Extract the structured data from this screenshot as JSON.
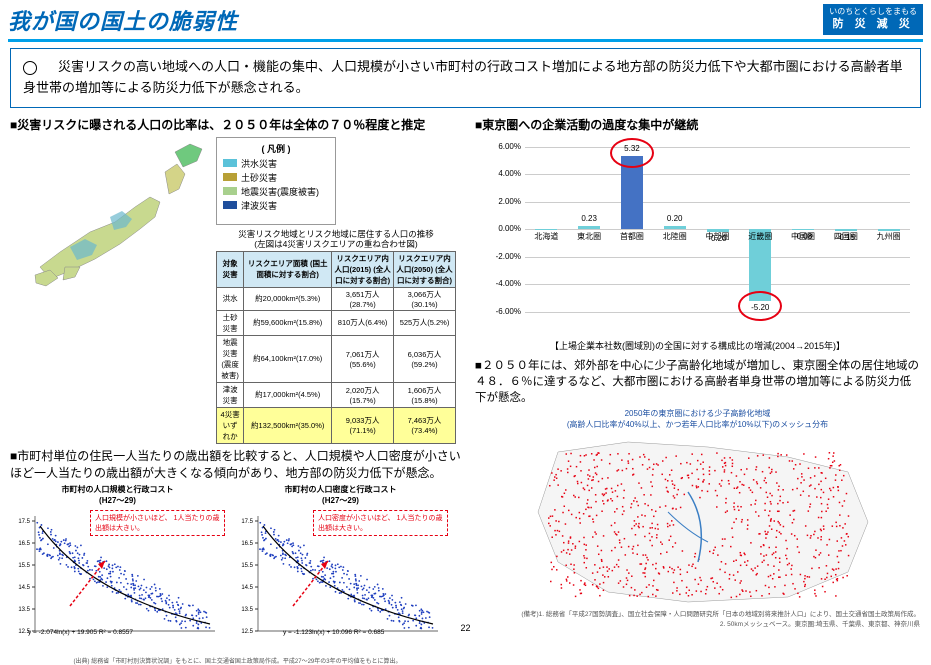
{
  "header": {
    "title": "我が国の国土の脆弱性",
    "badge_line1": "いのちとくらしをまもる",
    "badge_line2": "防 災 減 災"
  },
  "summary": "　災害リスクの高い地域への人口・機能の集中、人口規模が小さい市町村の行政コスト増加による地方部の防災力低下や大都市圏における高齢者単身世帯の増加等による防災力低下が懸念される。",
  "left": {
    "sec1_title": "■災害リスクに曝される人口の比率は、２０５０年は全体の７０％程度と推定",
    "legend": {
      "title": "( 凡例 )",
      "items": [
        {
          "color": "#5bc2d9",
          "label": "洪水災害"
        },
        {
          "color": "#b8a036",
          "label": "土砂災害"
        },
        {
          "color": "#a8d08d",
          "label": "地震災害(震度被害)"
        },
        {
          "color": "#1f4e9c",
          "label": "津波災害"
        }
      ]
    },
    "risk_table": {
      "title1": "災害リスク地域とリスク地域に居住する人口の推移",
      "title2": "(左図は4災害リスクエリアの重ね合わせ図)",
      "headers": [
        "対象災害",
        "リスクエリア面積\n(国土面積に対する割合)",
        "リスクエリア内人口(2015)\n(全人口に対する割合)",
        "リスクエリア内人口(2050)\n(全人口に対する割合)"
      ],
      "rows": [
        [
          "洪水",
          "約20,000km²(5.3%)",
          "3,651万人(28.7%)",
          "3,066万人(30.1%)"
        ],
        [
          "土砂災害",
          "約59,600km²(15.8%)",
          "810万人(6.4%)",
          "525万人(5.2%)"
        ],
        [
          "地震災害(震度被害)",
          "約64,100km²(17.0%)",
          "7,061万人(55.6%)",
          "6,036万人(59.2%)"
        ],
        [
          "津波災害",
          "約17,000km²(4.5%)",
          "2,020万人(15.7%)",
          "1,606万人(15.8%)"
        ],
        [
          "4災害いずれか",
          "約132,500km²(35.0%)",
          "9,033万人(71.1%)",
          "7,463万人(73.4%)"
        ]
      ]
    },
    "sec2_title": "■市町村単位の住民一人当たりの歳出額を比較すると、人口規模や人口密度が小さいほど一人当たりの歳出額が大きくなる傾向があり、地方部の防災力低下が懸念。",
    "scatter": {
      "chart1_title": "市町村の人口規模と行政コスト\n(H27～29)",
      "chart2_title": "市町村の人口密度と行政コスト\n(H27～29)",
      "callout": "人口規模が小さいほど、\n1人当たりの歳出額は大きい。",
      "callout2": "人口密度が小さいほど、\n1人当たりの歳出額は大きい。",
      "eq1": "y = -2.074ln(x) + 19.905\nR² = 0.8557",
      "eq2": "y = -1.123ln(x) + 10.096\nR² = 0.685",
      "x1_label": "LN(人口)",
      "x2_label": "LN(人口/km²)",
      "source": "(出典) 総務省「市町村別決算状況調」をもとに、国土交通省国土政策局作成。平成27～29年の3年の平均値をもとに算出。"
    }
  },
  "right": {
    "sec1_title": "■東京圏への企業活動の過度な集中が継続",
    "bar_chart": {
      "y_labels": [
        "6.00%",
        "4.00%",
        "2.00%",
        "0.00%",
        "-2.00%",
        "-4.00%",
        "-6.00%"
      ],
      "categories": [
        "北海道",
        "東北圏",
        "首都圏",
        "北陸圏",
        "中部圏",
        "近畿圏",
        "中国圏",
        "四国圏",
        "九州圏"
      ],
      "values": [
        -0.01,
        0.23,
        5.32,
        0.2,
        -0.2,
        -5.2,
        -0.08,
        -0.15,
        -0.12
      ],
      "colors": [
        "#6fcfd9",
        "#6fcfd9",
        "#4472c4",
        "#6fcfd9",
        "#6fcfd9",
        "#6fcfd9",
        "#6fcfd9",
        "#6fcfd9",
        "#6fcfd9"
      ],
      "value_labels": [
        "",
        "0.23",
        "5.32",
        "0.20",
        "-0.20",
        "-5.20",
        "-0.08",
        "-0.15",
        ""
      ],
      "caption": "【上場企業本社数(圏域別)の全国に対する構成比の増減(2004→2015年)】"
    },
    "sec2_title": "■２０５０年には、郊外部を中心に少子高齢化地域が増加し、東京圏全体の居住地域の４８．６％に達するなど、大都市圏における高齢者単身世帯の増加等による防災力低下が懸念。",
    "kanto": {
      "subtitle": "2050年の東京圏における少子高齢化地域\n(高齢人口比率が40%以上、かつ若年人口比率が10%以下)のメッシュ分布",
      "caption": "(備考)1. 総務省「平成27国勢調査」、国立社会保障・人口問題研究所「日本の地域別将来推計人口」により、国土交通省国土政策局作成。\n2. 50kmメッシュベース。東京圏:埼玉県、千葉県、東京都、神奈川県"
    }
  },
  "page_number": "22"
}
